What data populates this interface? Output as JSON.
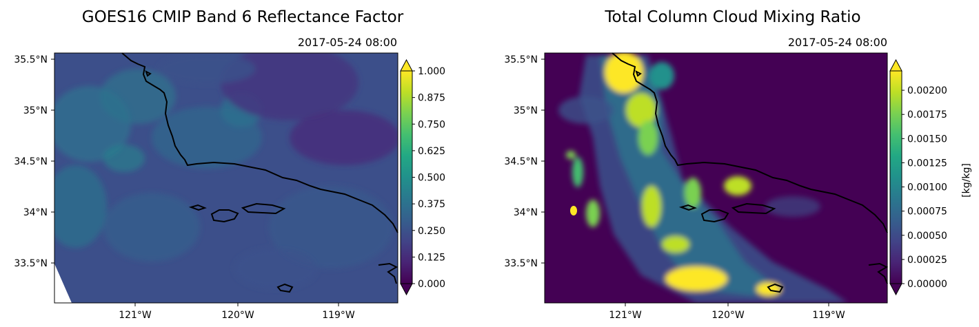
{
  "chart_data": [
    {
      "type": "heatmap",
      "title": "GOES16 CMIP Band 6 Reflectance Factor",
      "subtitle": "2017-05-24 08:00",
      "x_ticks": [
        "121°W",
        "120°W",
        "119°W"
      ],
      "x_tick_values": [
        -121,
        -120,
        -119
      ],
      "y_ticks": [
        "35.5°N",
        "35°N",
        "34.5°N",
        "34°N",
        "33.5°N"
      ],
      "y_tick_values": [
        35.5,
        35.0,
        34.5,
        34.0,
        33.5
      ],
      "xlim": [
        -121.8,
        -118.45
      ],
      "ylim": [
        33.1,
        35.55
      ],
      "colormap": "viridis",
      "colorbar": {
        "ticks": [
          "0.000",
          "0.125",
          "0.250",
          "0.375",
          "0.500",
          "0.625",
          "0.750",
          "0.875",
          "1.000"
        ],
        "range": [
          0.0,
          1.0
        ],
        "label": "",
        "extend": "both"
      }
    },
    {
      "type": "heatmap",
      "title": "Total Column Cloud Mixing Ratio",
      "subtitle": "2017-05-24 08:00",
      "x_ticks": [
        "121°W",
        "120°W",
        "119°W"
      ],
      "x_tick_values": [
        -121,
        -120,
        -119
      ],
      "y_ticks": [
        "35.5°N",
        "35°N",
        "34.5°N",
        "34°N",
        "33.5°N"
      ],
      "y_tick_values": [
        35.5,
        35.0,
        34.5,
        34.0,
        33.5
      ],
      "xlim": [
        -121.8,
        -118.45
      ],
      "ylim": [
        33.1,
        35.55
      ],
      "colormap": "viridis",
      "colorbar": {
        "ticks": [
          "0.00000",
          "0.00025",
          "0.00050",
          "0.00075",
          "0.00100",
          "0.00125",
          "0.00150",
          "0.00175",
          "0.00200"
        ],
        "range": [
          0.0,
          0.0022
        ],
        "label": "[kg/kg]",
        "extend": "both"
      }
    }
  ],
  "colors": {
    "viridis": [
      "#440154",
      "#482475",
      "#414487",
      "#355f8d",
      "#2a788e",
      "#21918c",
      "#22a884",
      "#44bf70",
      "#7ad151",
      "#bddf26",
      "#fde725"
    ],
    "coastline": "#000000",
    "background": "#ffffff"
  }
}
